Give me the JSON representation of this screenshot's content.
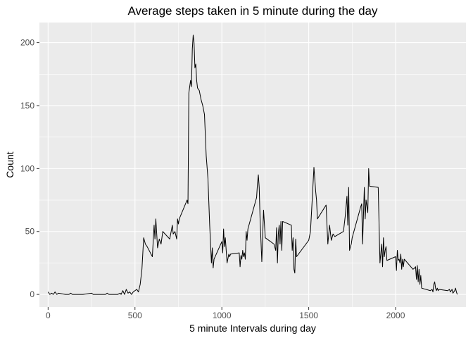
{
  "chart_data": {
    "type": "line",
    "title": "Average steps taken in 5 minute during the day",
    "xlabel": "5 minute Intervals during day",
    "ylabel": "Count",
    "xlim": [
      -50,
      2405
    ],
    "ylim": [
      -10,
      216
    ],
    "xticks": [
      0,
      500,
      1000,
      1500,
      2000
    ],
    "xtick_labels": [
      "0",
      "500",
      "1000",
      "1500",
      "2000"
    ],
    "yticks": [
      0,
      50,
      100,
      150,
      200
    ],
    "ytick_labels": [
      "0",
      "50",
      "100",
      "150",
      "200"
    ],
    "grid": true,
    "legend": "none",
    "colors": {
      "panel_background": "#ebebeb",
      "grid_major": "#ffffff",
      "line": "#000000",
      "tick_text": "#4d4d4d"
    },
    "series": [
      {
        "x": [
          0,
          10,
          20,
          30,
          40,
          50,
          60,
          100,
          110,
          120,
          130,
          140,
          200,
          250,
          260,
          300,
          330,
          340,
          350,
          400,
          415,
          420,
          430,
          440,
          450,
          460,
          470,
          480,
          490,
          500,
          510,
          520,
          530,
          540,
          550,
          560,
          570,
          600,
          610,
          615,
          620,
          630,
          640,
          650,
          660,
          700,
          715,
          720,
          730,
          740,
          745,
          750,
          755,
          800,
          805,
          810,
          820,
          825,
          830,
          835,
          840,
          845,
          850,
          855,
          860,
          870,
          880,
          890,
          900,
          910,
          920,
          930,
          940,
          945,
          950,
          955,
          1000,
          1005,
          1010,
          1015,
          1020,
          1030,
          1040,
          1045,
          1050,
          1100,
          1105,
          1110,
          1115,
          1120,
          1125,
          1130,
          1135,
          1140,
          1145,
          1150,
          1200,
          1205,
          1210,
          1215,
          1220,
          1230,
          1240,
          1250,
          1300,
          1310,
          1315,
          1320,
          1325,
          1330,
          1335,
          1340,
          1345,
          1350,
          1400,
          1405,
          1410,
          1415,
          1420,
          1425,
          1430,
          1500,
          1510,
          1520,
          1530,
          1540,
          1545,
          1550,
          1600,
          1610,
          1620,
          1630,
          1640,
          1650,
          1700,
          1710,
          1715,
          1720,
          1725,
          1730,
          1735,
          1740,
          1745,
          1750,
          1800,
          1805,
          1810,
          1820,
          1825,
          1830,
          1840,
          1845,
          1850,
          1900,
          1910,
          1920,
          1925,
          1930,
          1935,
          1940,
          1945,
          1950,
          2000,
          2005,
          2010,
          2015,
          2020,
          2025,
          2030,
          2035,
          2040,
          2045,
          2050,
          2100,
          2110,
          2115,
          2120,
          2125,
          2130,
          2135,
          2140,
          2145,
          2150,
          2200,
          2210,
          2215,
          2220,
          2225,
          2230,
          2235,
          2240,
          2245,
          2250,
          2300,
          2310,
          2315,
          2320,
          2325,
          2330,
          2335,
          2340,
          2345,
          2350,
          2355
        ],
        "values": [
          2,
          0,
          1,
          0,
          2,
          0,
          1,
          0,
          0,
          0,
          1,
          0,
          0,
          1,
          0,
          0,
          0,
          1,
          0,
          0,
          1,
          0,
          3,
          0,
          4,
          1,
          2,
          0,
          2,
          3,
          4,
          2,
          8,
          20,
          45,
          40,
          38,
          30,
          55,
          44,
          60,
          37,
          44,
          40,
          50,
          44,
          55,
          48,
          50,
          44,
          60,
          56,
          60,
          75,
          72,
          160,
          170,
          165,
          195,
          206,
          200,
          180,
          183,
          170,
          164,
          162,
          155,
          150,
          143,
          110,
          92,
          55,
          25,
          37,
          21,
          28,
          42,
          33,
          52,
          38,
          45,
          25,
          32,
          30,
          32,
          33,
          22,
          31,
          28,
          35,
          30,
          33,
          28,
          50,
          43,
          52,
          77,
          88,
          95,
          85,
          60,
          26,
          67,
          45,
          40,
          35,
          53,
          25,
          48,
          55,
          40,
          58,
          35,
          58,
          55,
          35,
          45,
          20,
          17,
          44,
          30,
          43,
          50,
          75,
          101,
          82,
          75,
          60,
          71,
          40,
          55,
          43,
          48,
          46,
          50,
          62,
          70,
          78,
          55,
          85,
          35,
          38,
          40,
          45,
          70,
          72,
          40,
          85,
          60,
          75,
          65,
          100,
          86,
          85,
          25,
          40,
          22,
          45,
          30,
          35,
          38,
          27,
          30,
          19,
          35,
          27,
          28,
          25,
          32,
          20,
          28,
          22,
          28,
          20,
          21,
          22,
          12,
          23,
          10,
          20,
          8,
          15,
          5,
          3,
          4,
          2,
          8,
          10,
          5,
          3,
          5,
          3,
          4,
          3,
          4,
          2,
          3,
          4,
          1,
          2,
          3,
          5,
          2,
          0
        ]
      }
    ]
  }
}
